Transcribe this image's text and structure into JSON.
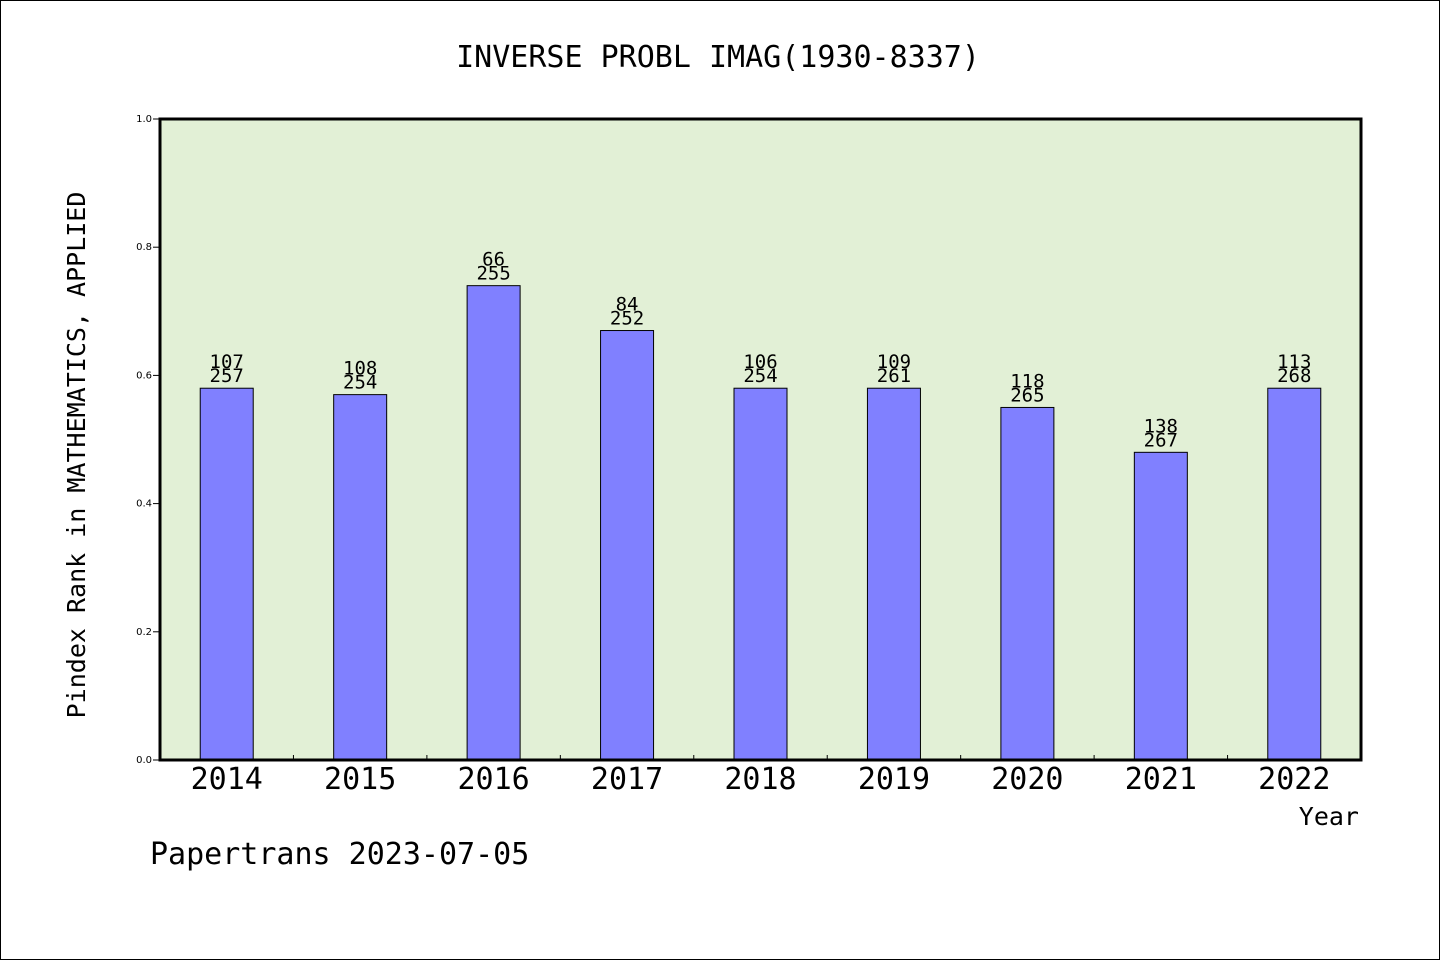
{
  "chart_data": {
    "type": "bar",
    "title": "INVERSE PROBL IMAG(1930-8337)",
    "xlabel": "Year",
    "ylabel": "Pindex Rank in MATHEMATICS, APPLIED",
    "ylim": [
      0,
      1.0
    ],
    "yticks": [
      "0.0",
      "0.2",
      "0.4",
      "0.6",
      "0.8",
      "1.0"
    ],
    "categories": [
      "2014",
      "2015",
      "2016",
      "2017",
      "2018",
      "2019",
      "2020",
      "2021",
      "2022"
    ],
    "values": [
      0.58,
      0.57,
      0.74,
      0.67,
      0.58,
      0.58,
      0.55,
      0.48,
      0.58
    ],
    "rank_labels": [
      "107",
      "108",
      "66",
      "84",
      "106",
      "109",
      "118",
      "138",
      "113"
    ],
    "total_labels": [
      "257",
      "254",
      "255",
      "252",
      "254",
      "261",
      "265",
      "267",
      "268"
    ],
    "grid": false,
    "legend": "none",
    "colors": {
      "bar_fill": "#8080ff",
      "plot_background": "#e2f0d6",
      "border": "#000000"
    }
  },
  "footer": {
    "watermark": "Papertrans 2023-07-05"
  }
}
